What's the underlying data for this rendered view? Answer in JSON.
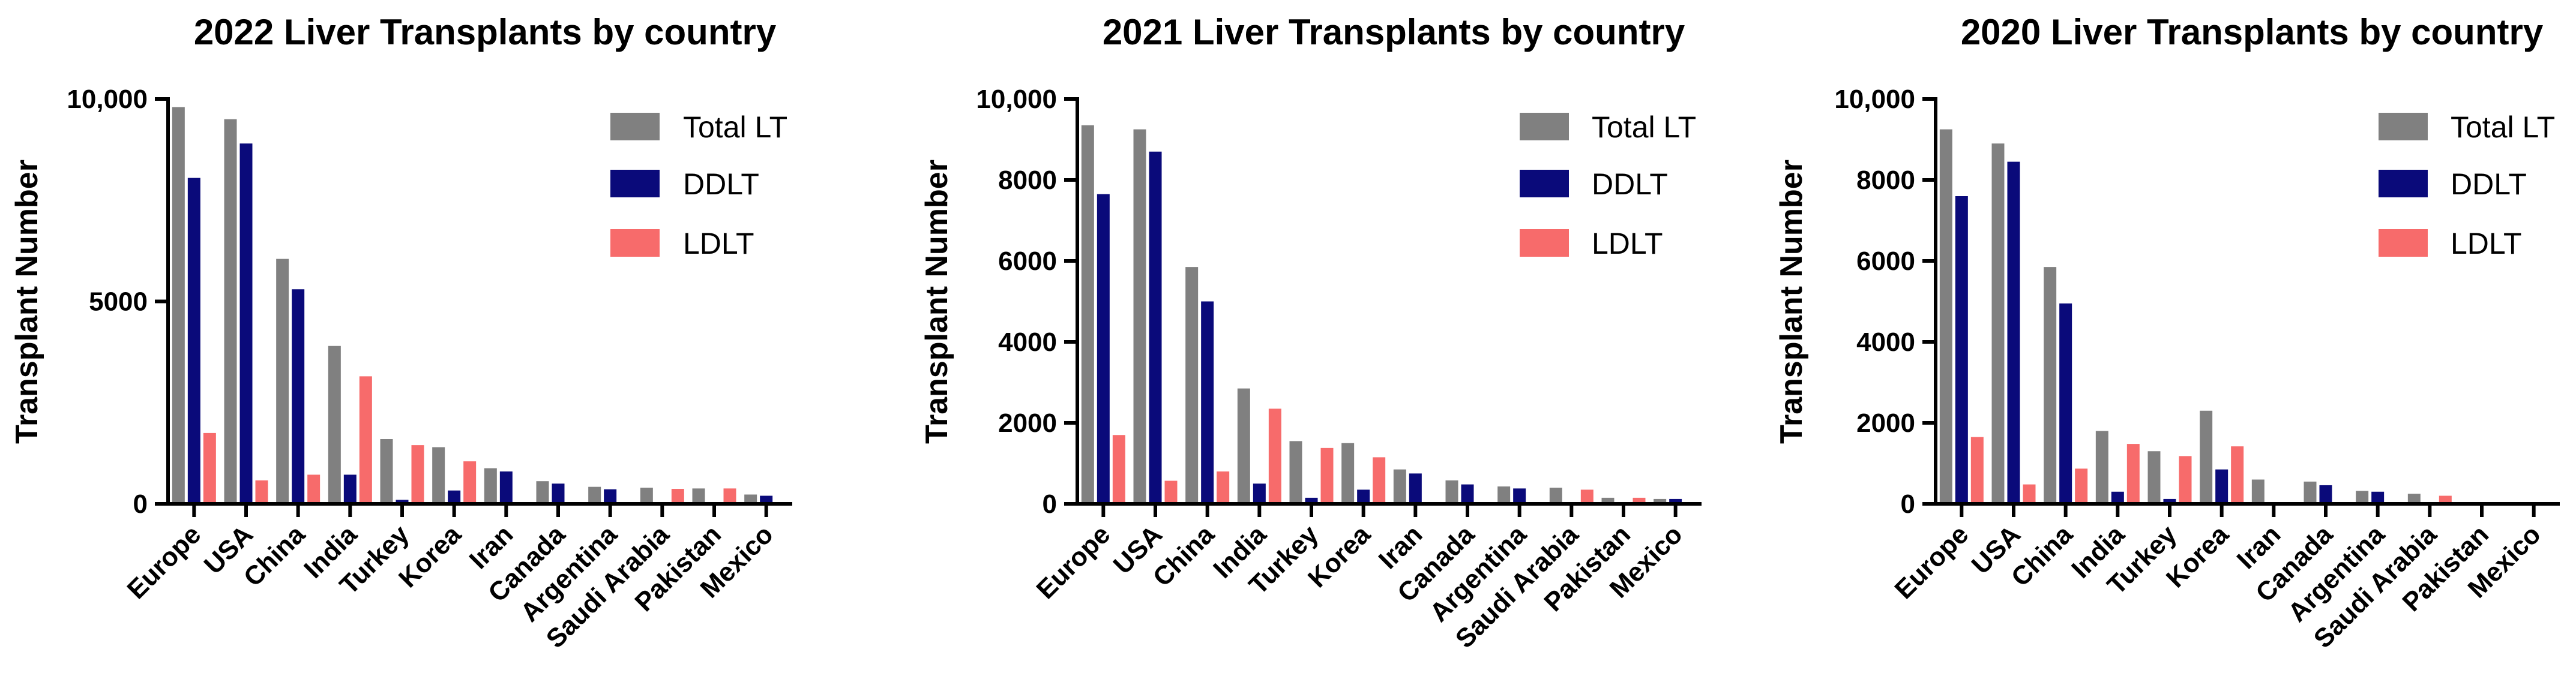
{
  "chart_data": [
    {
      "type": "bar",
      "title": "2022 Liver Transplants by country",
      "xlabel": "",
      "ylabel": "Transplant Number",
      "ylim": [
        0,
        10000
      ],
      "yticks": [
        0,
        5000,
        10000
      ],
      "ytick_labels": [
        "0",
        "5000",
        "10,000"
      ],
      "categories": [
        "Europe",
        "USA",
        "China",
        "India",
        "Turkey",
        "Korea",
        "Iran",
        "Canada",
        "Argentina",
        "Saudi Arabia",
        "Pakistan",
        "Mexico"
      ],
      "series": [
        {
          "name": "Total LT",
          "color": "#808080",
          "values": [
            9800,
            9500,
            6050,
            3900,
            1600,
            1400,
            880,
            560,
            420,
            400,
            380,
            230
          ]
        },
        {
          "name": "DDLT",
          "color": "#0a0a7a",
          "values": [
            8050,
            8900,
            5300,
            720,
            100,
            330,
            800,
            500,
            360,
            0,
            0,
            200
          ]
        },
        {
          "name": "LDLT",
          "color": "#f76b6b",
          "values": [
            1750,
            580,
            720,
            3150,
            1450,
            1050,
            0,
            0,
            0,
            370,
            380,
            0
          ]
        }
      ]
    },
    {
      "type": "bar",
      "title": "2021 Liver Transplants by country",
      "xlabel": "",
      "ylabel": "Transplant Number",
      "ylim": [
        0,
        10000
      ],
      "yticks": [
        0,
        2000,
        4000,
        6000,
        8000,
        10000
      ],
      "ytick_labels": [
        "0",
        "2000",
        "4000",
        "6000",
        "8000",
        "10,000"
      ],
      "categories": [
        "Europe",
        "USA",
        "China",
        "India",
        "Turkey",
        "Korea",
        "Iran",
        "Canada",
        "Argentina",
        "Saudi Arabia",
        "Pakistan",
        "Mexico"
      ],
      "series": [
        {
          "name": "Total LT",
          "color": "#808080",
          "values": [
            9350,
            9250,
            5850,
            2850,
            1550,
            1500,
            850,
            580,
            430,
            400,
            150,
            120
          ]
        },
        {
          "name": "DDLT",
          "color": "#0a0a7a",
          "values": [
            7650,
            8700,
            5000,
            500,
            150,
            350,
            750,
            480,
            380,
            0,
            0,
            120
          ]
        },
        {
          "name": "LDLT",
          "color": "#f76b6b",
          "values": [
            1700,
            570,
            800,
            2350,
            1380,
            1150,
            0,
            0,
            0,
            350,
            150,
            0
          ]
        }
      ]
    },
    {
      "type": "bar",
      "title": "2020 Liver Transplants by country",
      "xlabel": "",
      "ylabel": "Transplant Number",
      "ylim": [
        0,
        10000
      ],
      "yticks": [
        0,
        2000,
        4000,
        6000,
        8000,
        10000
      ],
      "ytick_labels": [
        "0",
        "2000",
        "4000",
        "6000",
        "8000",
        "10,000"
      ],
      "categories": [
        "Europe",
        "USA",
        "China",
        "India",
        "Turkey",
        "Korea",
        "Iran",
        "Canada",
        "Argentina",
        "Saudi Arabia",
        "Pakistan",
        "Mexico"
      ],
      "series": [
        {
          "name": "Total LT",
          "color": "#808080",
          "values": [
            9250,
            8900,
            5850,
            1800,
            1300,
            2300,
            600,
            550,
            320,
            250,
            30,
            30
          ]
        },
        {
          "name": "DDLT",
          "color": "#0a0a7a",
          "values": [
            7600,
            8450,
            4950,
            300,
            120,
            850,
            0,
            460,
            300,
            0,
            0,
            0
          ]
        },
        {
          "name": "LDLT",
          "color": "#f76b6b",
          "values": [
            1650,
            480,
            870,
            1480,
            1180,
            1420,
            0,
            0,
            0,
            200,
            0,
            0
          ]
        }
      ]
    }
  ]
}
